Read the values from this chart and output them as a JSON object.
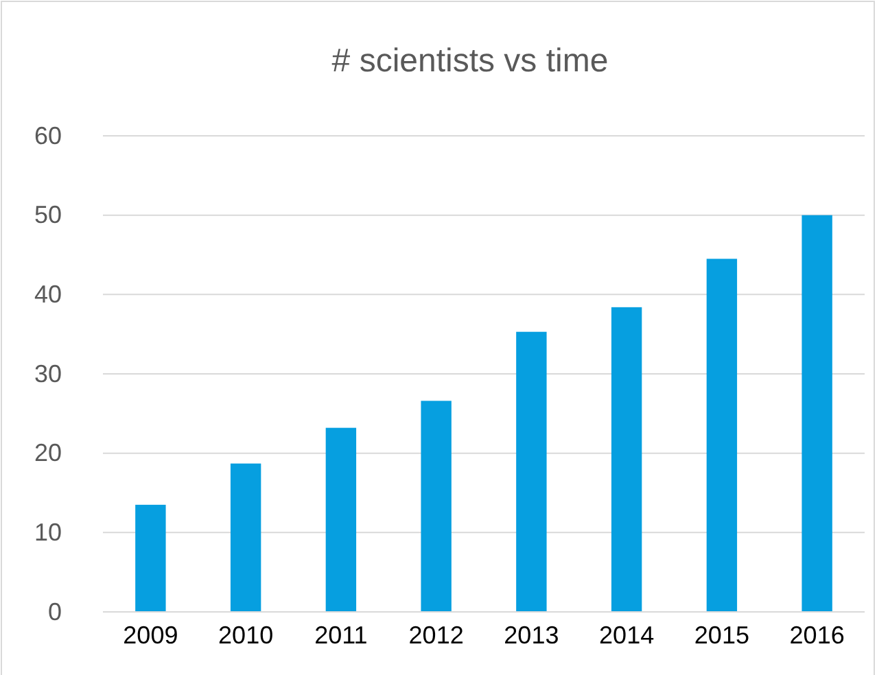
{
  "chart_data": {
    "type": "bar",
    "title": "# scientists vs time",
    "categories": [
      "2009",
      "2010",
      "2011",
      "2012",
      "2013",
      "2014",
      "2015",
      "2016"
    ],
    "values": [
      13.5,
      18.7,
      23.2,
      26.6,
      35.3,
      38.4,
      44.5,
      50.0
    ],
    "color": "#069fe0",
    "ylim": [
      0,
      60
    ],
    "yticks": [
      0,
      10,
      20,
      30,
      40,
      50,
      60
    ],
    "grid": "y"
  }
}
